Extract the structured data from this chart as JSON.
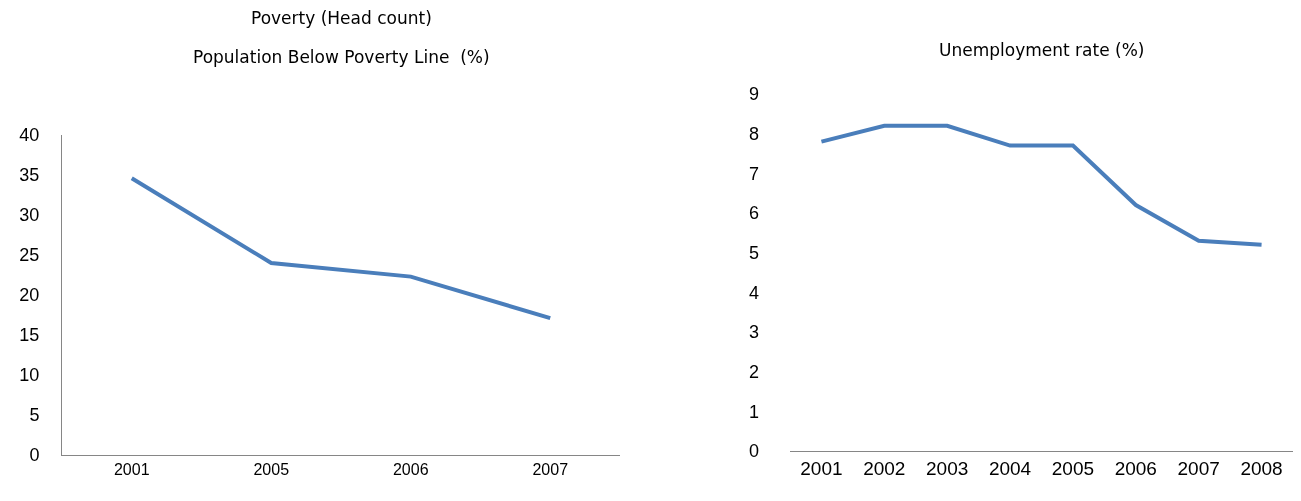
{
  "chart_data": [
    {
      "type": "line",
      "title": "Poverty (Head count)\nPopulation Below Poverty Line  (%)",
      "categories": [
        "2001",
        "2005",
        "2006",
        "2007"
      ],
      "series": [
        {
          "color": "#4a7ebb",
          "values": [
            34.6,
            24,
            22.3,
            17.1
          ]
        }
      ],
      "ylim": [
        0,
        40
      ],
      "yticks": [
        0,
        5,
        10,
        15,
        20,
        25,
        30,
        35,
        40
      ],
      "marker": "none",
      "line_style": "solid"
    },
    {
      "type": "line",
      "title": "Unemployment rate (%)",
      "categories": [
        "2001",
        "2002",
        "2003",
        "2004",
        "2005",
        "2006",
        "2007",
        "2008"
      ],
      "series": [
        {
          "color": "#4a7ebb",
          "values": [
            7.8,
            8.2,
            8.2,
            7.7,
            7.7,
            6.2,
            5.3,
            5.2
          ]
        }
      ],
      "ylim": [
        0,
        9
      ],
      "yticks": [
        0,
        1,
        2,
        3,
        4,
        5,
        6,
        7,
        8,
        9
      ],
      "marker": "none",
      "line_style": "solid"
    }
  ]
}
